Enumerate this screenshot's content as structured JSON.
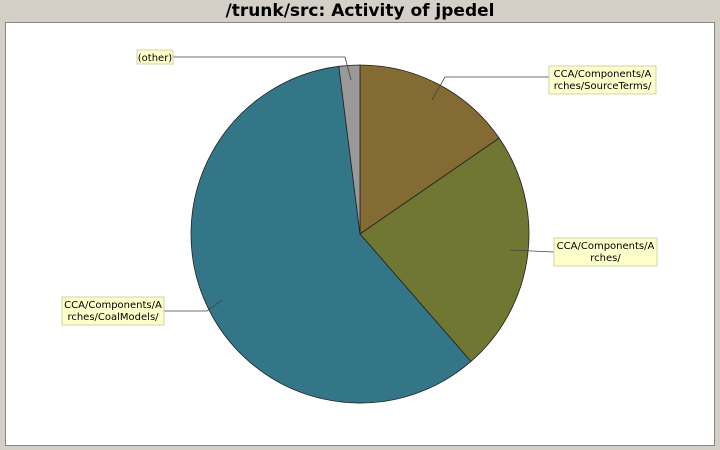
{
  "chart_data": {
    "type": "pie",
    "title": "/trunk/src: Activity of jpedel",
    "slices": [
      {
        "label": "CCA/Components/Arches/SourceTerms/",
        "lines": [
          "CCA/Components/A",
          "rches/SourceTerms/"
        ],
        "value": 15.4,
        "color": "#846a33"
      },
      {
        "label": "CCA/Components/Arches/",
        "lines": [
          "CCA/Components/A",
          "rches/"
        ],
        "value": 23.2,
        "color": "#6f7732"
      },
      {
        "label": "CCA/Components/Arches/CoalModels/",
        "lines": [
          "CCA/Components/A",
          "rches/CoalModels/"
        ],
        "value": 59.4,
        "color": "#337688"
      },
      {
        "label": "(other)",
        "lines": [
          "(other)"
        ],
        "value": 2.0,
        "color": "#999999"
      }
    ]
  }
}
